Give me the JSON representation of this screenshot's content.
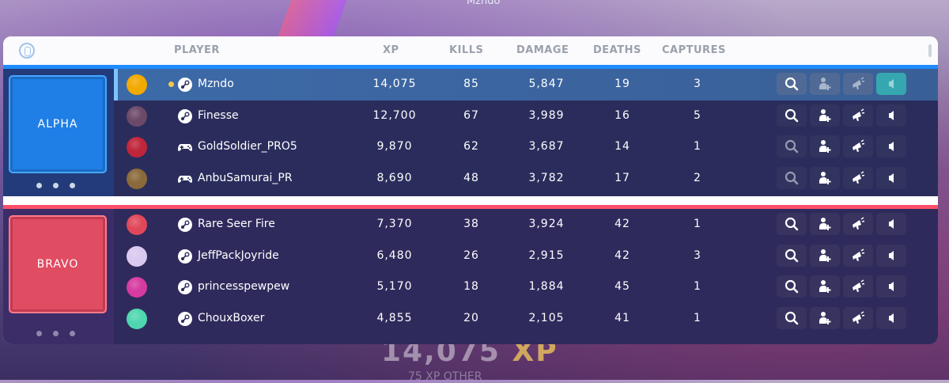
{
  "background": {
    "top_name": "Mzndo",
    "xp_value": "14,075",
    "xp_unit": "XP",
    "other_label": "75 XP   OTHER"
  },
  "header": {
    "player": "PLAYER",
    "xp": "XP",
    "kills": "KILLS",
    "damage": "DAMAGE",
    "deaths": "DEATHS",
    "captures": "CAPTURES"
  },
  "teams": [
    {
      "name": "ALPHA",
      "color": "#1e8cff",
      "players": [
        {
          "name": "Mzndo",
          "platform": "steam-icon",
          "xp": "14,075",
          "kills": "85",
          "damage": "5,847",
          "deaths": "19",
          "captures": "3",
          "avatar_color": "#f2a900"
        },
        {
          "name": "Finesse",
          "platform": "steam-icon",
          "xp": "12,700",
          "kills": "67",
          "damage": "3,989",
          "deaths": "16",
          "captures": "5",
          "avatar_color": "#6b4a68"
        },
        {
          "name": "GoldSoldier_PRO5",
          "platform": "gamepad-icon",
          "xp": "9,870",
          "kills": "62",
          "damage": "3,687",
          "deaths": "14",
          "captures": "1",
          "avatar_color": "#c0253a"
        },
        {
          "name": "AnbuSamurai_PR",
          "platform": "gamepad-icon",
          "xp": "8,690",
          "kills": "48",
          "damage": "3,782",
          "deaths": "17",
          "captures": "2",
          "avatar_color": "#8a6a3a"
        }
      ]
    },
    {
      "name": "BRAVO",
      "color": "#ff4f6a",
      "players": [
        {
          "name": "Rare Seer Fire",
          "platform": "steam-icon",
          "xp": "7,370",
          "kills": "38",
          "damage": "3,924",
          "deaths": "42",
          "captures": "1",
          "avatar_color": "#e0485a"
        },
        {
          "name": "JeffPackJoyride",
          "platform": "steam-icon",
          "xp": "6,480",
          "kills": "26",
          "damage": "2,915",
          "deaths": "42",
          "captures": "3",
          "avatar_color": "#d9c8f0"
        },
        {
          "name": "princesspewpew",
          "platform": "steam-icon",
          "xp": "5,170",
          "kills": "18",
          "damage": "1,884",
          "deaths": "45",
          "captures": "1",
          "avatar_color": "#d63aa0"
        },
        {
          "name": "ChouxBoxer",
          "platform": "steam-icon",
          "xp": "4,855",
          "kills": "20",
          "damage": "2,105",
          "deaths": "41",
          "captures": "1",
          "avatar_color": "#4fd6b0"
        }
      ]
    }
  ]
}
